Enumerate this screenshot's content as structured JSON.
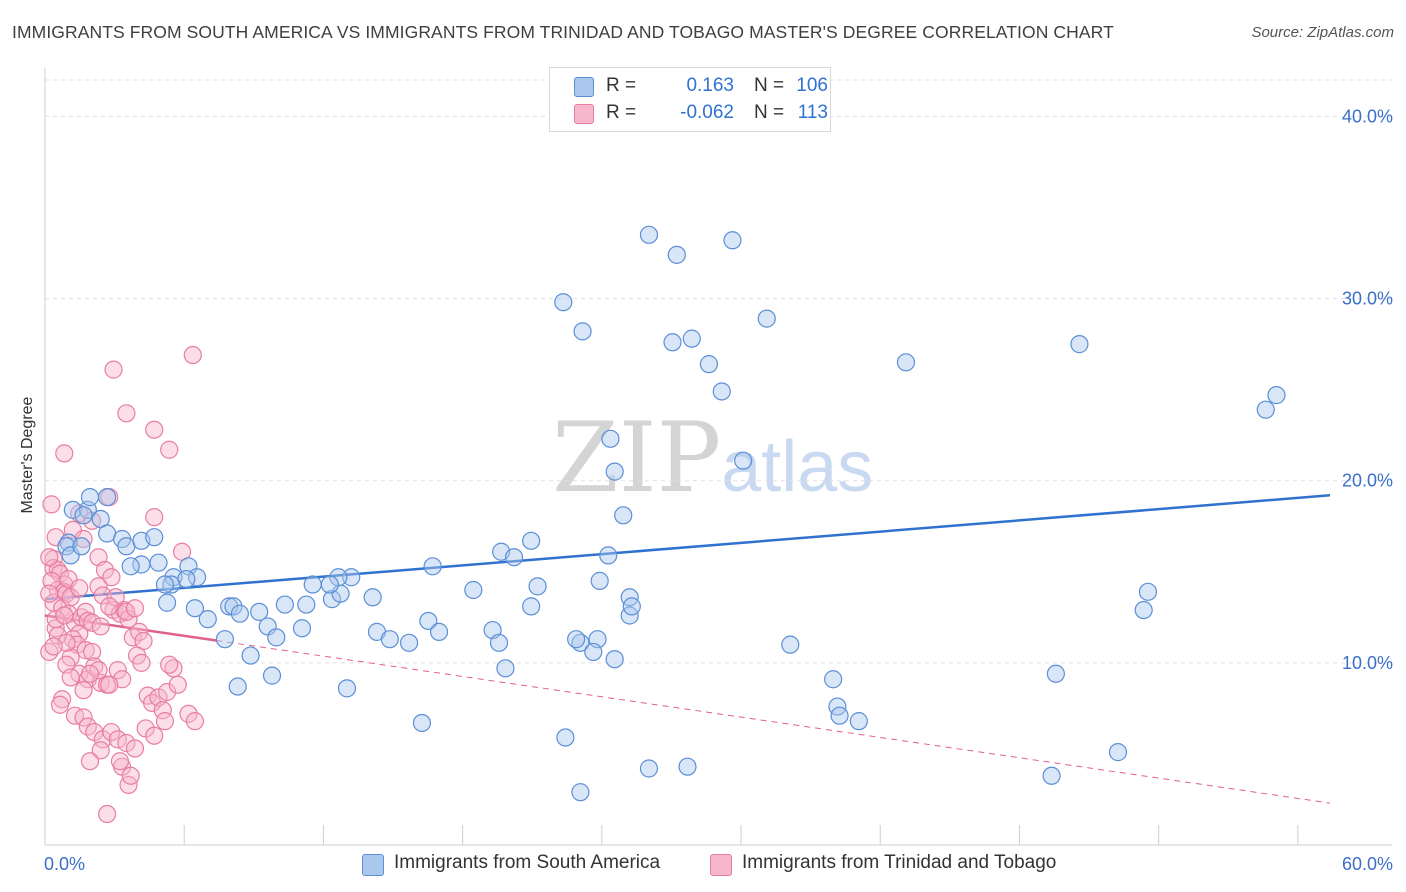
{
  "header": {
    "title": "IMMIGRANTS FROM SOUTH AMERICA VS IMMIGRANTS FROM TRINIDAD AND TOBAGO MASTER'S DEGREE CORRELATION CHART",
    "source": "Source: ZipAtlas.com"
  },
  "watermark": {
    "zip": "ZIP",
    "atlas": "atlas"
  },
  "legend": {
    "r_label": "R =",
    "n_label": "N =",
    "rows": [
      {
        "r": "0.163",
        "n": "106"
      },
      {
        "r": "-0.062",
        "n": "113"
      }
    ]
  },
  "colors": {
    "blue_fill": "#aac8ee",
    "blue_stroke": "#5b8fd6",
    "blue_line": "#2f72d0",
    "pink_fill": "#f6b6cb",
    "pink_stroke": "#e87ea1",
    "pink_line": "#e0608c",
    "axis_text": "#3b6fc9",
    "grid": "#e0e0e0"
  },
  "chart_data": {
    "type": "scatter",
    "title": "IMMIGRANTS FROM SOUTH AMERICA VS IMMIGRANTS FROM TRINIDAD AND TOBAGO MASTER'S DEGREE CORRELATION CHART",
    "xlabel": "",
    "ylabel": "Master's Degree",
    "xlim": [
      0,
      60
    ],
    "ylim": [
      0,
      42
    ],
    "x_tick_labels": [
      "0.0%",
      "60.0%"
    ],
    "y_ticks": [
      10,
      20,
      30,
      40
    ],
    "y_tick_labels": [
      "10.0%",
      "20.0%",
      "30.0%",
      "40.0%"
    ],
    "grid": true,
    "legend_position": "bottom",
    "series": [
      {
        "name": "Immigrants from South America",
        "color": "#5b8fd6",
        "R": 0.163,
        "N": 106,
        "trend": {
          "x": [
            0,
            60
          ],
          "y": [
            13.5,
            19.2
          ],
          "style": "solid"
        },
        "points": [
          [
            1.3,
            18.4
          ],
          [
            2.0,
            18.4
          ],
          [
            1.8,
            18.1
          ],
          [
            2.1,
            19.1
          ],
          [
            2.9,
            19.1
          ],
          [
            2.6,
            17.9
          ],
          [
            1.1,
            16.6
          ],
          [
            1.0,
            16.4
          ],
          [
            1.2,
            15.9
          ],
          [
            1.7,
            16.4
          ],
          [
            2.9,
            17.1
          ],
          [
            3.6,
            16.8
          ],
          [
            3.8,
            16.4
          ],
          [
            4.5,
            16.7
          ],
          [
            5.1,
            16.9
          ],
          [
            4.5,
            15.4
          ],
          [
            5.3,
            15.5
          ],
          [
            4.0,
            15.3
          ],
          [
            6.7,
            15.3
          ],
          [
            6.0,
            14.7
          ],
          [
            7.1,
            14.7
          ],
          [
            6.6,
            14.6
          ],
          [
            5.9,
            14.3
          ],
          [
            5.6,
            14.3
          ],
          [
            5.7,
            13.3
          ],
          [
            7.0,
            13.0
          ],
          [
            7.6,
            12.4
          ],
          [
            8.6,
            13.1
          ],
          [
            8.8,
            13.1
          ],
          [
            9.1,
            12.7
          ],
          [
            10.0,
            12.8
          ],
          [
            10.4,
            12.0
          ],
          [
            10.8,
            11.4
          ],
          [
            11.2,
            13.2
          ],
          [
            12.0,
            11.9
          ],
          [
            12.2,
            13.2
          ],
          [
            12.5,
            14.3
          ],
          [
            13.4,
            13.5
          ],
          [
            13.8,
            13.8
          ],
          [
            15.3,
            13.6
          ],
          [
            14.3,
            14.7
          ],
          [
            15.5,
            11.7
          ],
          [
            16.1,
            11.3
          ],
          [
            17.0,
            11.1
          ],
          [
            17.9,
            12.3
          ],
          [
            18.4,
            11.7
          ],
          [
            18.1,
            15.3
          ],
          [
            20.0,
            14.0
          ],
          [
            20.9,
            11.8
          ],
          [
            21.3,
            16.1
          ],
          [
            21.9,
            15.8
          ],
          [
            22.7,
            16.7
          ],
          [
            21.5,
            9.7
          ],
          [
            21.2,
            11.1
          ],
          [
            23.0,
            14.2
          ],
          [
            22.7,
            13.1
          ],
          [
            25.0,
            11.1
          ],
          [
            24.8,
            11.3
          ],
          [
            26.3,
            15.9
          ],
          [
            25.1,
            28.2
          ],
          [
            24.2,
            29.8
          ],
          [
            26.4,
            22.3
          ],
          [
            26.6,
            20.5
          ],
          [
            27.0,
            18.1
          ],
          [
            27.3,
            13.6
          ],
          [
            27.3,
            12.6
          ],
          [
            26.6,
            10.2
          ],
          [
            25.8,
            11.3
          ],
          [
            25.6,
            10.6
          ],
          [
            24.3,
            5.9
          ],
          [
            25.0,
            2.9
          ],
          [
            28.2,
            4.2
          ],
          [
            30.2,
            27.8
          ],
          [
            28.2,
            33.5
          ],
          [
            32.1,
            33.2
          ],
          [
            29.5,
            32.4
          ],
          [
            29.3,
            27.6
          ],
          [
            31.0,
            26.4
          ],
          [
            31.6,
            24.9
          ],
          [
            33.7,
            28.9
          ],
          [
            32.6,
            21.1
          ],
          [
            27.4,
            13.1
          ],
          [
            25.9,
            14.5
          ],
          [
            17.6,
            6.7
          ],
          [
            14.1,
            8.6
          ],
          [
            13.7,
            14.7
          ],
          [
            13.3,
            14.3
          ],
          [
            9.6,
            10.4
          ],
          [
            10.6,
            9.3
          ],
          [
            9.0,
            8.7
          ],
          [
            8.4,
            11.3
          ],
          [
            36.8,
            9.1
          ],
          [
            37.0,
            7.6
          ],
          [
            38.0,
            6.8
          ],
          [
            34.8,
            11.0
          ],
          [
            40.2,
            26.5
          ],
          [
            30.0,
            4.3
          ],
          [
            37.1,
            7.1
          ],
          [
            51.3,
            12.9
          ],
          [
            51.5,
            13.9
          ],
          [
            47.2,
            9.4
          ],
          [
            48.3,
            27.5
          ],
          [
            50.1,
            5.1
          ],
          [
            47.0,
            3.8
          ],
          [
            57.0,
            23.9
          ],
          [
            57.5,
            24.7
          ]
        ]
      },
      {
        "name": "Immigrants from Trinidad and Tobago",
        "color": "#e87ea1",
        "R": -0.062,
        "N": 113,
        "trend": {
          "x": [
            0,
            60
          ],
          "y": [
            12.6,
            2.3
          ],
          "style": "solid to 8%, dashed beyond"
        },
        "points": [
          [
            0.3,
            18.7
          ],
          [
            0.5,
            16.9
          ],
          [
            0.4,
            15.7
          ],
          [
            0.4,
            15.2
          ],
          [
            0.6,
            15.1
          ],
          [
            0.7,
            14.9
          ],
          [
            0.9,
            14.3
          ],
          [
            0.6,
            14.0
          ],
          [
            0.9,
            13.9
          ],
          [
            1.0,
            13.8
          ],
          [
            0.4,
            13.3
          ],
          [
            0.8,
            13.0
          ],
          [
            1.2,
            13.6
          ],
          [
            1.1,
            12.7
          ],
          [
            1.4,
            12.2
          ],
          [
            1.7,
            12.5
          ],
          [
            1.9,
            12.8
          ],
          [
            2.0,
            12.3
          ],
          [
            1.6,
            11.6
          ],
          [
            1.3,
            11.3
          ],
          [
            1.5,
            11.0
          ],
          [
            1.9,
            10.7
          ],
          [
            2.2,
            10.6
          ],
          [
            1.2,
            10.3
          ],
          [
            1.0,
            9.9
          ],
          [
            1.6,
            9.4
          ],
          [
            2.0,
            9.1
          ],
          [
            2.6,
            8.9
          ],
          [
            2.9,
            8.8
          ],
          [
            1.8,
            8.5
          ],
          [
            0.8,
            8.0
          ],
          [
            0.7,
            7.7
          ],
          [
            1.4,
            7.1
          ],
          [
            1.8,
            7.0
          ],
          [
            2.0,
            6.5
          ],
          [
            2.3,
            6.2
          ],
          [
            2.7,
            5.8
          ],
          [
            3.1,
            6.2
          ],
          [
            3.4,
            5.8
          ],
          [
            3.8,
            5.6
          ],
          [
            2.6,
            5.2
          ],
          [
            2.1,
            4.6
          ],
          [
            3.6,
            4.3
          ],
          [
            3.9,
            3.3
          ],
          [
            2.9,
            1.7
          ],
          [
            3.2,
            12.9
          ],
          [
            3.5,
            12.7
          ],
          [
            3.7,
            12.9
          ],
          [
            3.9,
            12.4
          ],
          [
            3.8,
            12.8
          ],
          [
            4.1,
            11.4
          ],
          [
            4.4,
            11.7
          ],
          [
            4.6,
            11.2
          ],
          [
            4.3,
            10.4
          ],
          [
            4.5,
            10.0
          ],
          [
            3.4,
            9.6
          ],
          [
            3.6,
            9.1
          ],
          [
            3.0,
            8.8
          ],
          [
            4.8,
            8.2
          ],
          [
            5.0,
            7.8
          ],
          [
            5.3,
            8.1
          ],
          [
            5.5,
            7.4
          ],
          [
            5.6,
            6.8
          ],
          [
            4.7,
            6.4
          ],
          [
            5.1,
            6.0
          ],
          [
            4.2,
            5.3
          ],
          [
            3.5,
            4.6
          ],
          [
            4.0,
            3.8
          ],
          [
            5.7,
            8.4
          ],
          [
            6.7,
            7.2
          ],
          [
            7.0,
            6.8
          ],
          [
            6.2,
            8.8
          ],
          [
            6.0,
            9.7
          ],
          [
            5.8,
            9.9
          ],
          [
            6.4,
            16.1
          ],
          [
            6.9,
            26.9
          ],
          [
            3.2,
            26.1
          ],
          [
            3.8,
            23.7
          ],
          [
            5.1,
            22.8
          ],
          [
            5.8,
            21.7
          ],
          [
            0.9,
            21.5
          ],
          [
            5.1,
            18.0
          ],
          [
            3.0,
            19.1
          ],
          [
            1.6,
            18.2
          ],
          [
            2.2,
            17.8
          ],
          [
            1.3,
            17.3
          ],
          [
            1.8,
            16.8
          ],
          [
            2.5,
            15.8
          ],
          [
            2.8,
            15.1
          ],
          [
            3.1,
            14.7
          ],
          [
            2.5,
            14.2
          ],
          [
            2.7,
            13.7
          ],
          [
            3.3,
            13.6
          ],
          [
            3.0,
            13.1
          ],
          [
            2.2,
            12.2
          ],
          [
            2.6,
            12.0
          ],
          [
            0.5,
            11.9
          ],
          [
            0.6,
            11.5
          ],
          [
            1.0,
            11.1
          ],
          [
            0.2,
            10.6
          ],
          [
            0.4,
            10.9
          ],
          [
            0.2,
            15.8
          ],
          [
            0.3,
            14.5
          ],
          [
            0.2,
            13.8
          ],
          [
            0.5,
            12.4
          ],
          [
            0.9,
            12.6
          ],
          [
            1.1,
            14.6
          ],
          [
            1.6,
            14.1
          ],
          [
            2.3,
            9.8
          ],
          [
            2.5,
            9.6
          ],
          [
            1.2,
            9.2
          ],
          [
            4.2,
            13.0
          ],
          [
            2.1,
            9.4
          ]
        ]
      }
    ]
  },
  "bottom_legend": [
    {
      "label": "Immigrants from South America"
    },
    {
      "label": "Immigrants from Trinidad and Tobago"
    }
  ]
}
